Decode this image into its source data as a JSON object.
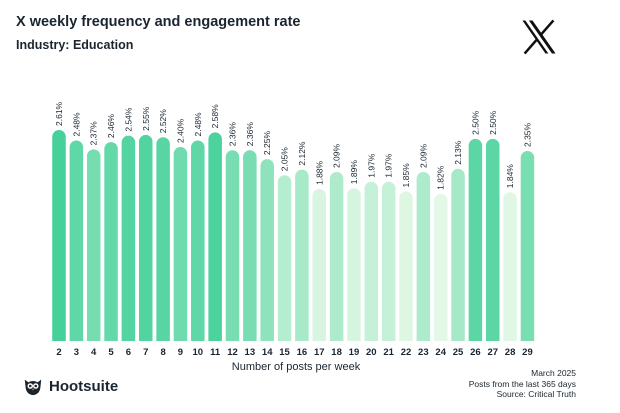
{
  "header": {
    "title": "X weekly frequency and engagement rate",
    "subtitle": "Industry: Education"
  },
  "logo": {
    "icon": "x-logo-icon"
  },
  "brand": {
    "name": "Hootsuite",
    "icon": "hootsuite-owl-icon"
  },
  "footer": {
    "date": "March 2025",
    "period": "Posts from the last 365 days",
    "source": "Source: Critical Truth"
  },
  "chart_data": {
    "type": "bar",
    "title": "X weekly frequency and engagement rate",
    "subtitle": "Industry: Education",
    "xlabel": "Number of posts per week",
    "ylabel": "",
    "categories": [
      "2",
      "3",
      "4",
      "5",
      "6",
      "7",
      "8",
      "9",
      "10",
      "11",
      "12",
      "13",
      "14",
      "15",
      "16",
      "17",
      "18",
      "19",
      "20",
      "21",
      "22",
      "23",
      "24",
      "25",
      "26",
      "27",
      "28",
      "29"
    ],
    "values": [
      2.61,
      2.48,
      2.37,
      2.46,
      2.54,
      2.55,
      2.52,
      2.4,
      2.48,
      2.58,
      2.36,
      2.36,
      2.25,
      2.05,
      2.12,
      1.88,
      2.09,
      1.89,
      1.97,
      1.97,
      1.85,
      2.09,
      1.82,
      2.13,
      2.5,
      2.5,
      1.84,
      2.35
    ],
    "data_labels": [
      "2.61%",
      "2.48%",
      "2.37%",
      "2.46%",
      "2.54%",
      "2.55%",
      "2.52%",
      "2.40%",
      "2.48%",
      "2.58%",
      "2.36%",
      "2.36%",
      "2.25%",
      "2.05%",
      "2.12%",
      "1.88%",
      "2.09%",
      "1.89%",
      "1.97%",
      "1.97%",
      "1.85%",
      "2.09%",
      "1.82%",
      "2.13%",
      "2.50%",
      "2.50%",
      "1.84%",
      "2.35%"
    ],
    "ylim": [
      0,
      2.61
    ],
    "grid": false,
    "legend": "none",
    "colors": {
      "low": "#e3f8e6",
      "high": "#46d19a"
    }
  }
}
